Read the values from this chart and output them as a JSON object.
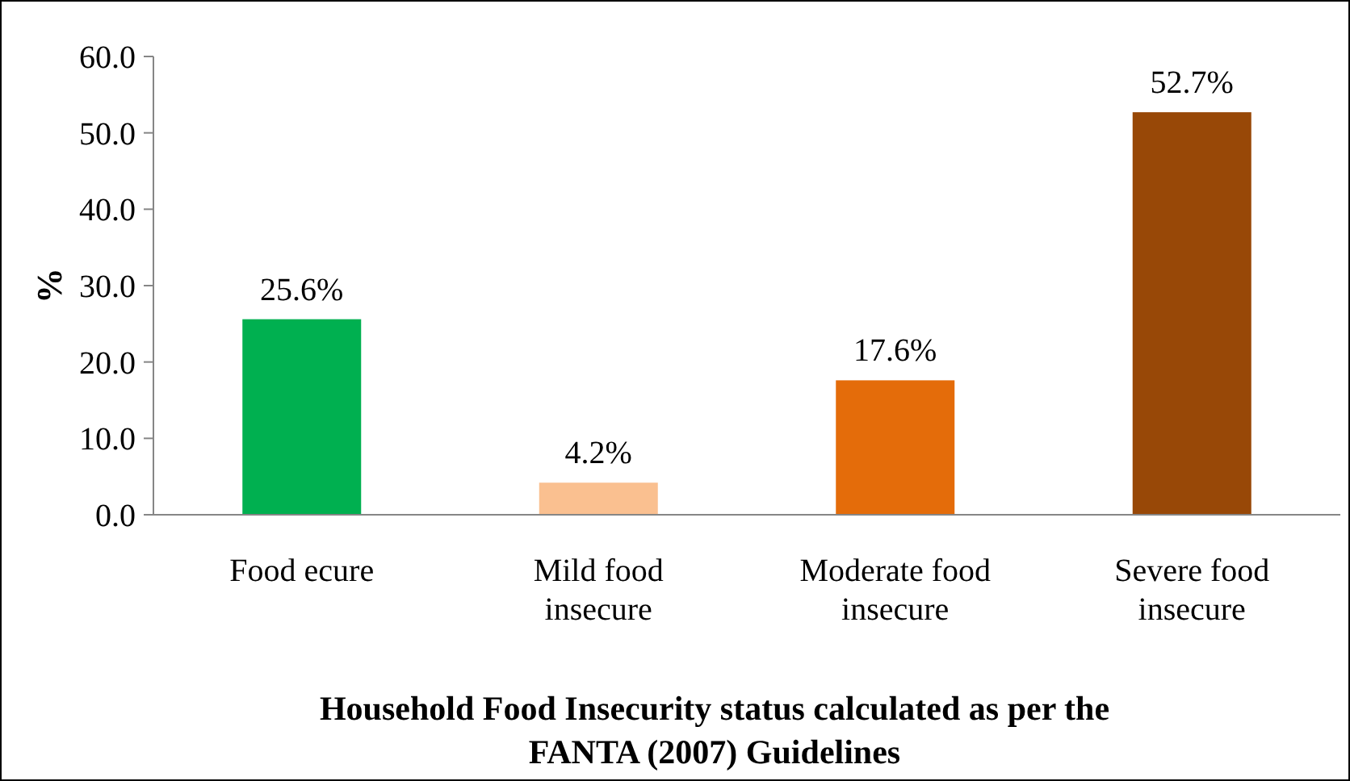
{
  "chart_data": {
    "type": "bar",
    "xlabel": "Household Food Insecurity status calculated as per the FANTA (2007) Guidelines",
    "ylabel": "%",
    "categories": [
      "Food ecure",
      "Mild food insecure",
      "Moderate food insecure",
      "Severe food insecure"
    ],
    "values": [
      25.6,
      4.2,
      17.6,
      52.7
    ],
    "colors": [
      "#00b050",
      "#fac090",
      "#e46c0a",
      "#984807"
    ],
    "value_labels": [
      "25.6%",
      "4.2%",
      "17.6%",
      "52.7%"
    ],
    "ylim": [
      0,
      60
    ],
    "yticks": [
      {
        "value": 0,
        "label": "0.0"
      },
      {
        "value": 10,
        "label": "10.0"
      },
      {
        "value": 20,
        "label": "20.0"
      },
      {
        "value": 30,
        "label": "30.0"
      },
      {
        "value": 40,
        "label": "40.0"
      },
      {
        "value": 50,
        "label": "50.0"
      },
      {
        "value": 60,
        "label": "60.0"
      }
    ],
    "grid": false
  }
}
